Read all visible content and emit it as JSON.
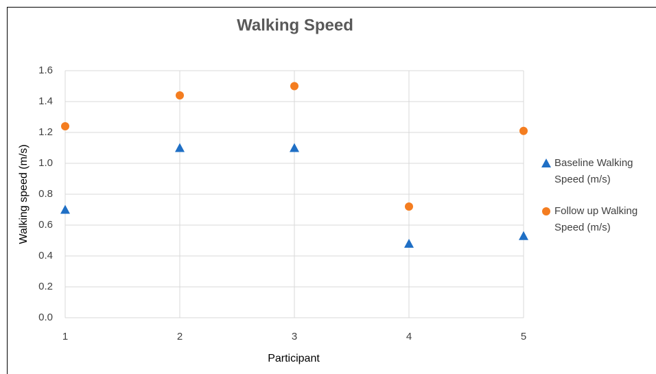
{
  "chart_data": {
    "type": "scatter",
    "title": "Walking Speed",
    "x_label": "Participant",
    "y_label": "Walking speed (m/s)",
    "x": [
      1,
      2,
      3,
      4,
      5
    ],
    "series": [
      {
        "name": "Baseline Walking Speed (m/s)",
        "color": "#1f6fc5",
        "marker": "triangle",
        "values": [
          0.7,
          1.1,
          1.1,
          0.48,
          0.53
        ]
      },
      {
        "name": "Follow up Walking Speed (m/s)",
        "color": "#f47d20",
        "marker": "circle",
        "values": [
          1.24,
          1.44,
          1.5,
          0.72,
          1.21
        ]
      }
    ],
    "xlim": [
      1,
      5
    ],
    "xticks": [
      1,
      2,
      3,
      4,
      5
    ],
    "ylim": [
      0,
      1.6
    ],
    "yticks": [
      {
        "value": 0,
        "label": "0.0"
      },
      0.2,
      0.4,
      0.6,
      0.8,
      {
        "value": 1,
        "label": "1.0"
      },
      1.2,
      1.4,
      1.6
    ],
    "grid": true,
    "legend": "right"
  }
}
